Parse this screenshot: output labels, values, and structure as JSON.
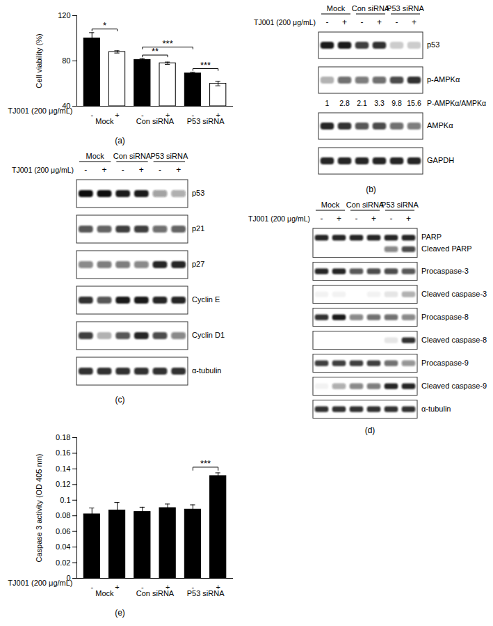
{
  "chart_data": [
    {
      "type": "bar",
      "panel": "(a)",
      "y_label": "Cell viability (%)",
      "x_label": "TJ001 (200 μg/mL)",
      "categories": [
        "-",
        "+",
        "-",
        "+",
        "-",
        "+"
      ],
      "groups": [
        "Mock",
        "Con siRNA",
        "P53 siRNA"
      ],
      "values": [
        100,
        88,
        81,
        78,
        69,
        60
      ],
      "errors": [
        5,
        1,
        1,
        1,
        1,
        2
      ],
      "colors": [
        "#000000",
        "#ffffff",
        "#000000",
        "#ffffff",
        "#000000",
        "#ffffff"
      ],
      "ylim": [
        40,
        120
      ],
      "yticks": [
        40,
        80,
        120
      ],
      "significance": [
        {
          "from": 0,
          "to": 1,
          "label": "*"
        },
        {
          "from": 2,
          "to": 3,
          "label": "**"
        },
        {
          "from": 2,
          "to": 4,
          "label": "***"
        },
        {
          "from": 4,
          "to": 5,
          "label": "***"
        }
      ]
    },
    {
      "type": "bar",
      "panel": "(e)",
      "y_label": "Caspase 3 activity (OD 405 nm)",
      "x_label": "TJ001 (200 μg/mL)",
      "categories": [
        "-",
        "+",
        "-",
        "+",
        "-",
        "+"
      ],
      "groups": [
        "Mock",
        "Con siRNA",
        "P53 siRNA"
      ],
      "values": [
        0.082,
        0.087,
        0.085,
        0.09,
        0.088,
        0.131
      ],
      "errors": [
        0.008,
        0.01,
        0.006,
        0.005,
        0.006,
        0.004
      ],
      "colors": [
        "#000000",
        "#000000",
        "#000000",
        "#000000",
        "#000000",
        "#000000"
      ],
      "ylim": [
        0,
        0.18
      ],
      "yticks": [
        0,
        0.02,
        0.04,
        0.06,
        0.08,
        0.1,
        0.12,
        0.14,
        0.16,
        0.18
      ],
      "significance": [
        {
          "from": 4,
          "to": 5,
          "label": "***"
        }
      ]
    }
  ],
  "blots": [
    {
      "panel": "(b)",
      "treatment_label": "TJ001 (200 μg/mL)",
      "groups": [
        "Mock",
        "Con siRNA",
        "P53 siRNA"
      ],
      "lanes": [
        "-",
        "+",
        "-",
        "+",
        "-",
        "+"
      ],
      "rows": [
        {
          "label": "p53",
          "intensity": [
            0.95,
            0.95,
            0.8,
            0.85,
            0.2,
            0.2
          ]
        },
        {
          "label": "p-AMPKα",
          "intensity": [
            0.3,
            0.6,
            0.55,
            0.6,
            0.75,
            0.85
          ]
        },
        {
          "label": "P-AMPKα/AMPKα",
          "ratios": [
            1,
            2.8,
            2.1,
            3.3,
            9.8,
            15.6
          ]
        },
        {
          "label": "AMPKα",
          "intensity": [
            0.9,
            0.85,
            0.7,
            0.75,
            0.6,
            0.55
          ]
        },
        {
          "label": "GAPDH",
          "intensity": [
            0.9,
            0.9,
            0.9,
            0.9,
            0.9,
            0.9
          ]
        }
      ]
    },
    {
      "panel": "(c)",
      "treatment_label": "TJ001 (200 μg/mL)",
      "groups": [
        "Mock",
        "Con siRNA",
        "P53 siRNA"
      ],
      "lanes": [
        "-",
        "+",
        "-",
        "+",
        "-",
        "+"
      ],
      "rows": [
        {
          "label": "p53",
          "intensity": [
            1,
            1,
            0.95,
            0.95,
            0.4,
            0.35
          ]
        },
        {
          "label": "p21",
          "intensity": [
            0.7,
            0.65,
            0.8,
            0.8,
            0.6,
            0.65
          ]
        },
        {
          "label": "p27",
          "intensity": [
            0.5,
            0.55,
            0.55,
            0.5,
            0.9,
            0.9
          ]
        },
        {
          "label": "Cyclin E",
          "intensity": [
            0.85,
            0.7,
            0.95,
            0.95,
            0.9,
            0.9
          ]
        },
        {
          "label": "Cyclin D1",
          "intensity": [
            0.8,
            0.3,
            0.7,
            0.9,
            0.75,
            0.5
          ]
        },
        {
          "label": "α-tubulin",
          "intensity": [
            0.85,
            0.85,
            0.85,
            0.85,
            0.85,
            0.85
          ]
        }
      ]
    },
    {
      "panel": "(d)",
      "treatment_label": "TJ001 (200 μg/mL)",
      "groups": [
        "Mock",
        "Con siRNA",
        "P53 siRNA"
      ],
      "lanes": [
        "-",
        "+",
        "-",
        "+",
        "-",
        "+"
      ],
      "rows": [
        {
          "label": "PARP",
          "intensity": [
            0.9,
            0.9,
            0.9,
            0.9,
            0.9,
            0.9
          ],
          "lower_label": "Cleaved PARP",
          "lower_intensity": [
            0,
            0,
            0,
            0,
            0.5,
            0.75
          ]
        },
        {
          "label": "Procaspase-3",
          "intensity": [
            0.9,
            0.9,
            0.7,
            0.75,
            0.75,
            0.7
          ]
        },
        {
          "label": "Cleaved caspase-3",
          "intensity": [
            0.05,
            0.05,
            0,
            0.05,
            0.1,
            0.3
          ]
        },
        {
          "label": "Procaspase-8",
          "intensity": [
            0.85,
            0.95,
            0.5,
            0.6,
            0.6,
            0.5
          ]
        },
        {
          "label": "Cleaved caspase-8",
          "intensity": [
            0,
            0,
            0,
            0,
            0.1,
            0.85
          ]
        },
        {
          "label": "Procaspase-9",
          "intensity": [
            0.8,
            0.8,
            0.8,
            0.8,
            0.6,
            0.45
          ]
        },
        {
          "label": "Cleaved caspase-9",
          "intensity": [
            0.05,
            0.35,
            0.5,
            0.55,
            0.9,
            0.9
          ]
        },
        {
          "label": "α-tubulin",
          "intensity": [
            0.85,
            0.85,
            0.85,
            0.85,
            0.85,
            0.85
          ]
        }
      ]
    }
  ]
}
